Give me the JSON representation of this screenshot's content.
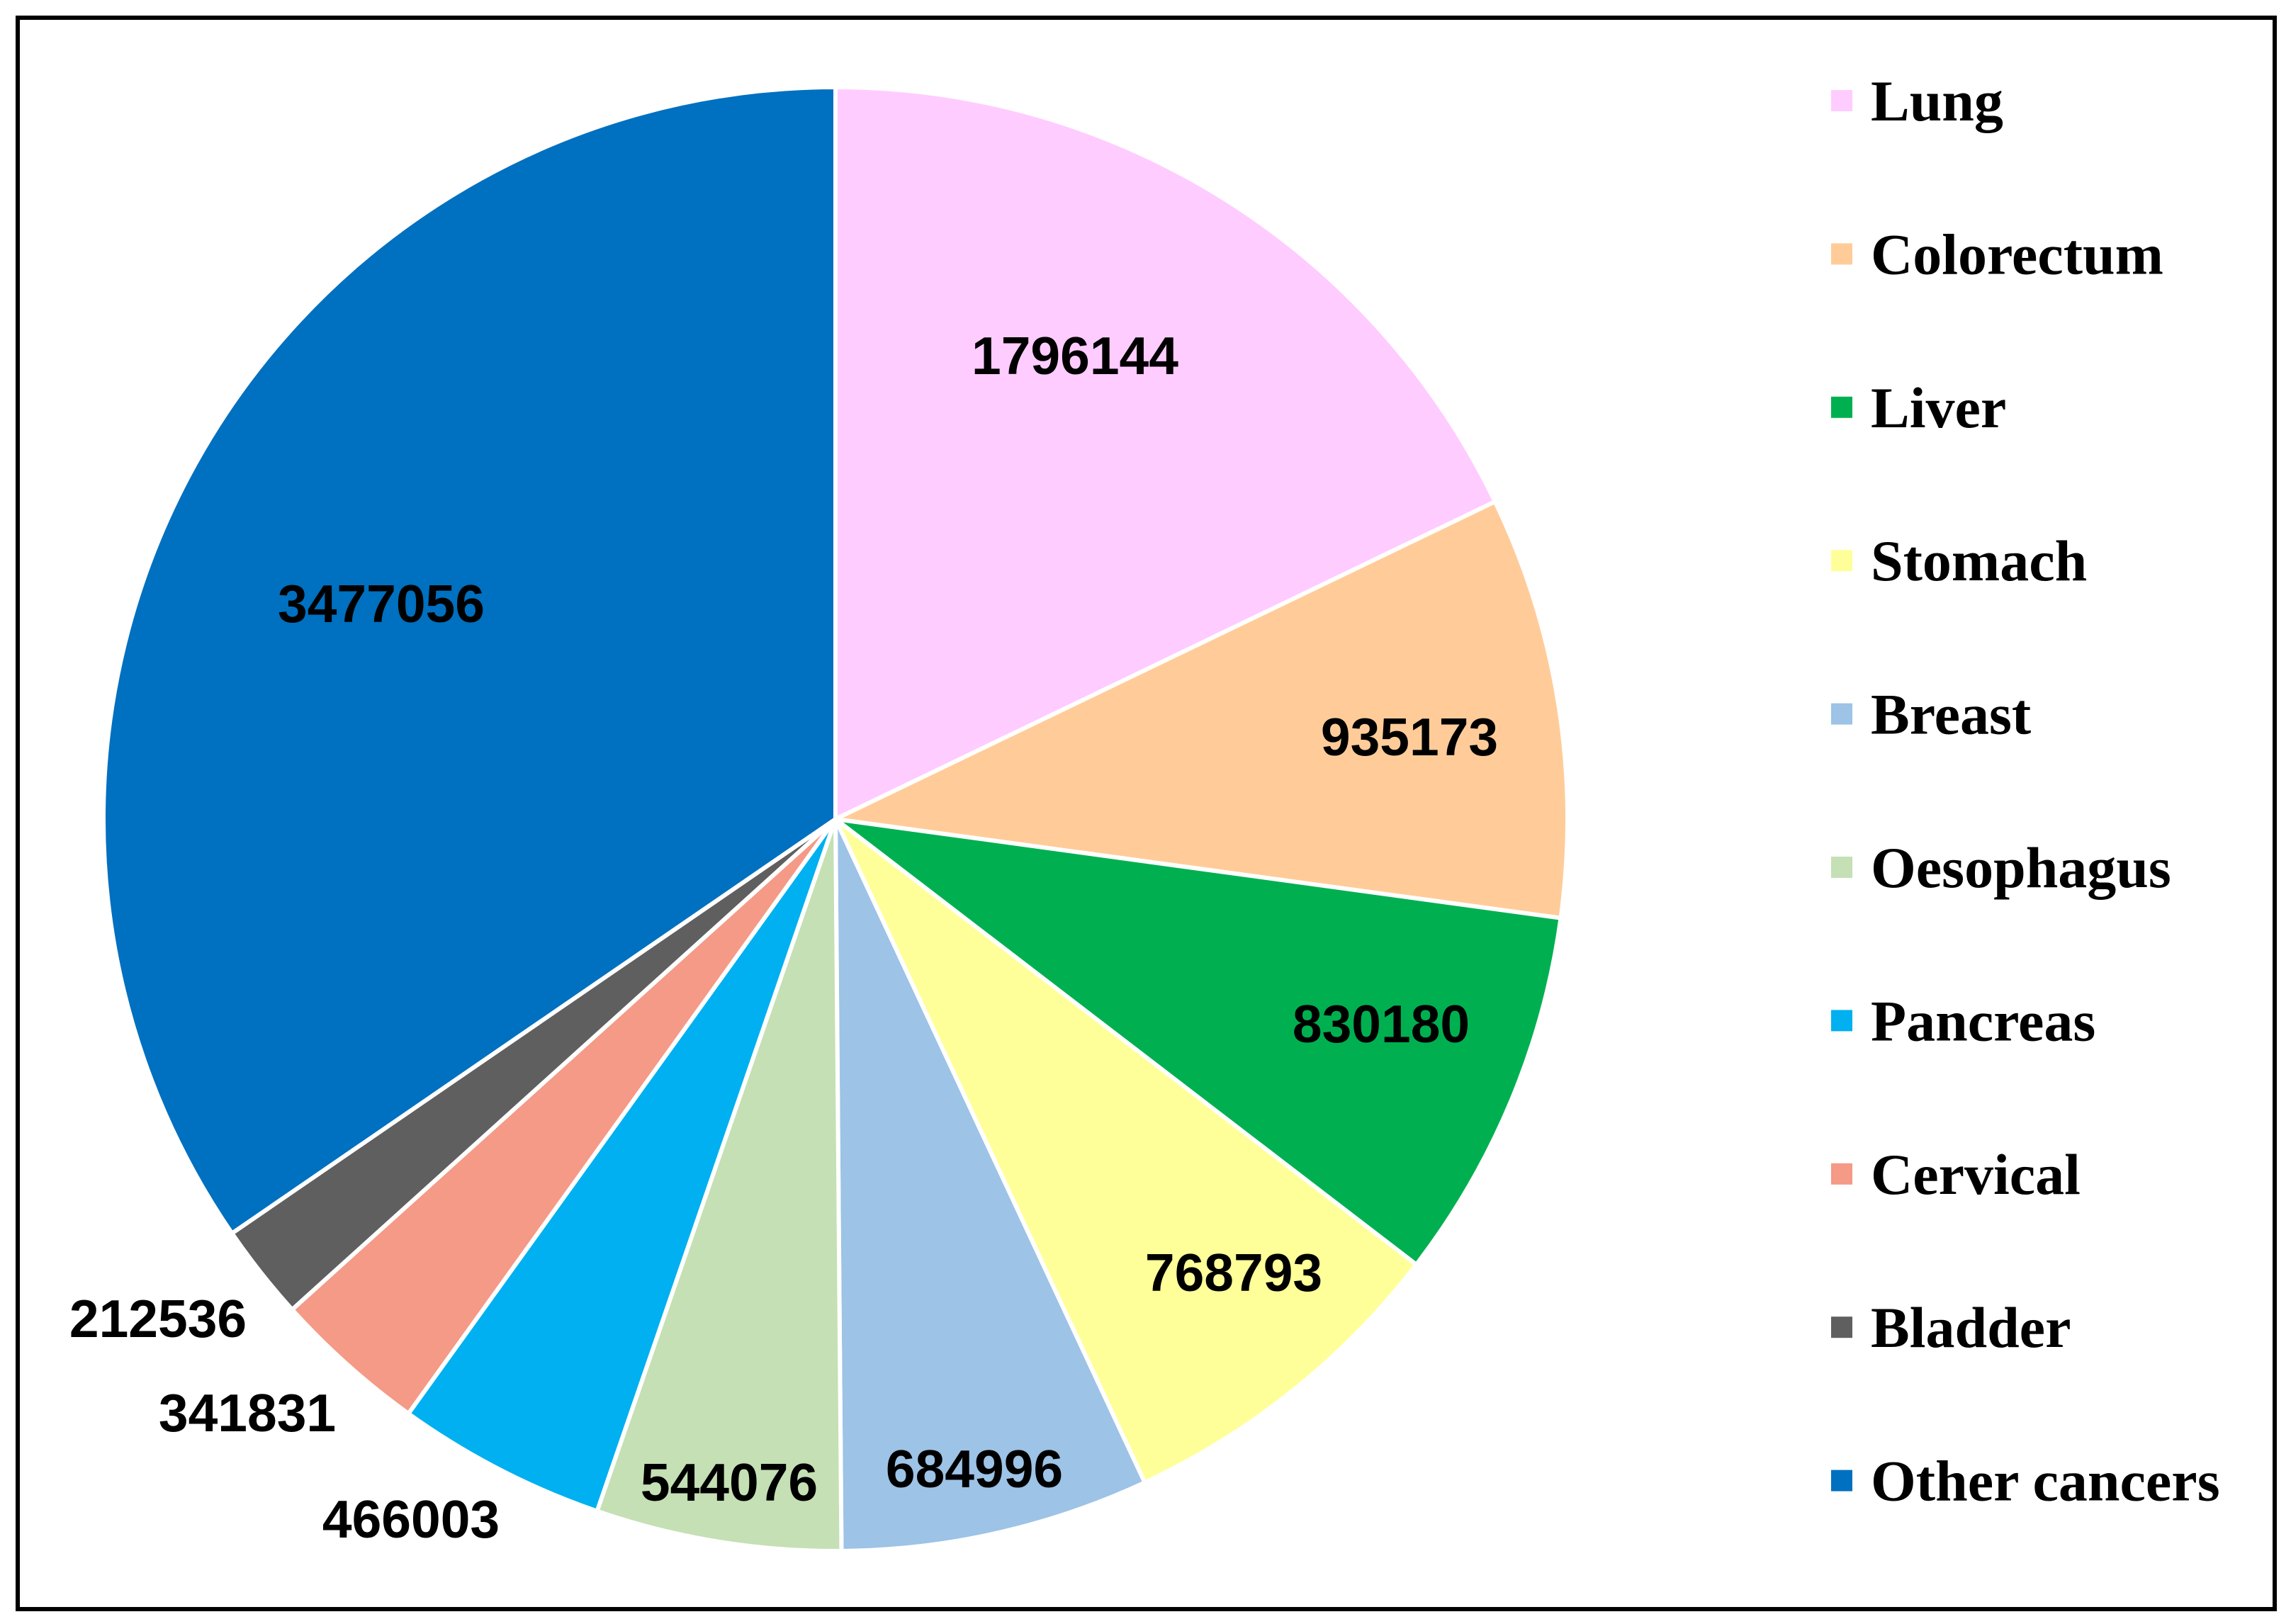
{
  "chart_data": {
    "type": "pie",
    "categories": [
      "Lung",
      "Colorectum",
      "Liver",
      "Stomach",
      "Breast",
      "Oesophagus",
      "Pancreas",
      "Cervical",
      "Bladder",
      "Other cancers"
    ],
    "values": [
      1796144,
      935173,
      830180,
      768793,
      684996,
      544076,
      466003,
      341831,
      212536,
      3477056
    ],
    "colors": [
      "#FFCCFF",
      "#FFCC99",
      "#00B050",
      "#FFFF99",
      "#9DC3E6",
      "#C5E0B4",
      "#00B0F0",
      "#F49A86",
      "#5F5F5F",
      "#0070C0"
    ],
    "direction": "clockwise from top",
    "legend_position": "right",
    "data_labels": "values"
  }
}
